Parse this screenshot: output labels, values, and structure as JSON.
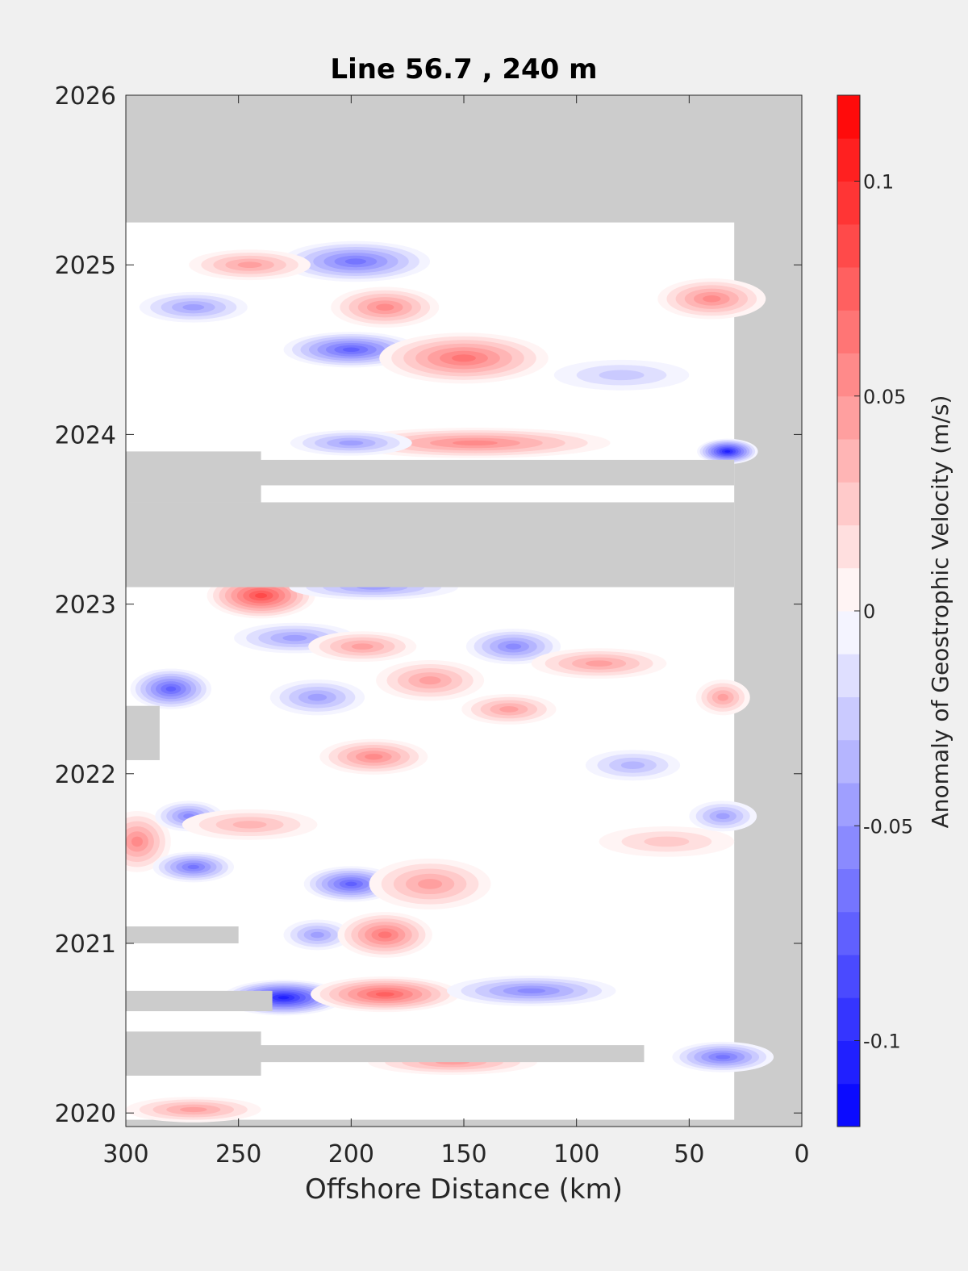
{
  "chart_data": {
    "type": "heatmap",
    "title": "Line 56.7 , 240 m",
    "xlabel": "Offshore Distance (km)",
    "ylabel": "",
    "xlim": [
      300,
      0
    ],
    "ylim": [
      2019.92,
      2026
    ],
    "x_ticks": [
      "300",
      "250",
      "200",
      "150",
      "100",
      "50",
      "0"
    ],
    "y_ticks": [
      "2020",
      "2021",
      "2022",
      "2023",
      "2024",
      "2025",
      "2026"
    ],
    "x_axis_reversed": true,
    "colorbar": {
      "label": "Anomaly of Geostrophic Velocity (m/s)",
      "range": [
        -0.12,
        0.12
      ],
      "step": 0.01,
      "ticks": [
        "-0.1",
        "-0.05",
        "0",
        "0.05",
        "0.1"
      ],
      "ticks_values": [
        -0.1,
        -0.05,
        0,
        0.05,
        0.1
      ],
      "colormap": "blue-white-red",
      "negative_color": "#0000ff",
      "positive_color": "#ff0000",
      "zero_color": "#ffffff"
    },
    "missing_color": "#cccccc",
    "data_extent": {
      "x": [
        30,
        300
      ],
      "y": [
        2019.96,
        2025.25
      ]
    },
    "missing_bands": [
      {
        "y": [
          2023.1,
          2023.6
        ],
        "x": [
          30,
          300
        ]
      },
      {
        "y": [
          2023.6,
          2023.9
        ],
        "x": [
          240,
          300
        ]
      },
      {
        "y": [
          2023.7,
          2023.85
        ],
        "x": [
          30,
          300
        ]
      },
      {
        "y": [
          2022.08,
          2022.4
        ],
        "x": [
          285,
          300
        ]
      },
      {
        "y": [
          2021.0,
          2021.1
        ],
        "x": [
          250,
          300
        ]
      },
      {
        "y": [
          2020.6,
          2020.72
        ],
        "x": [
          235,
          300
        ]
      },
      {
        "y": [
          2020.22,
          2020.48
        ],
        "x": [
          240,
          300
        ]
      },
      {
        "y": [
          2020.3,
          2020.4
        ],
        "x": [
          70,
          300
        ]
      }
    ],
    "features": [
      {
        "x": 198,
        "y": 2025.02,
        "value": -0.07,
        "sx": 22,
        "sy": 0.08
      },
      {
        "x": 245,
        "y": 2025.0,
        "value": 0.05,
        "sx": 18,
        "sy": 0.06
      },
      {
        "x": 185,
        "y": 2024.75,
        "value": 0.06,
        "sx": 16,
        "sy": 0.08
      },
      {
        "x": 200,
        "y": 2024.5,
        "value": -0.08,
        "sx": 20,
        "sy": 0.07
      },
      {
        "x": 150,
        "y": 2024.45,
        "value": 0.07,
        "sx": 25,
        "sy": 0.1
      },
      {
        "x": 270,
        "y": 2024.75,
        "value": -0.05,
        "sx": 16,
        "sy": 0.06
      },
      {
        "x": 40,
        "y": 2024.8,
        "value": 0.06,
        "sx": 16,
        "sy": 0.08
      },
      {
        "x": 80,
        "y": 2024.35,
        "value": -0.03,
        "sx": 20,
        "sy": 0.06
      },
      {
        "x": 33,
        "y": 2023.9,
        "value": -0.11,
        "sx": 9,
        "sy": 0.05
      },
      {
        "x": 145,
        "y": 2023.95,
        "value": 0.06,
        "sx": 40,
        "sy": 0.06
      },
      {
        "x": 200,
        "y": 2023.95,
        "value": -0.05,
        "sx": 18,
        "sy": 0.05
      },
      {
        "x": 240,
        "y": 2023.05,
        "value": 0.09,
        "sx": 16,
        "sy": 0.09
      },
      {
        "x": 190,
        "y": 2023.1,
        "value": -0.05,
        "sx": 25,
        "sy": 0.05
      },
      {
        "x": 280,
        "y": 2022.5,
        "value": -0.08,
        "sx": 12,
        "sy": 0.08
      },
      {
        "x": 225,
        "y": 2022.8,
        "value": -0.05,
        "sx": 18,
        "sy": 0.06
      },
      {
        "x": 195,
        "y": 2022.75,
        "value": 0.05,
        "sx": 16,
        "sy": 0.06
      },
      {
        "x": 128,
        "y": 2022.75,
        "value": -0.06,
        "sx": 14,
        "sy": 0.07
      },
      {
        "x": 165,
        "y": 2022.55,
        "value": 0.05,
        "sx": 16,
        "sy": 0.08
      },
      {
        "x": 215,
        "y": 2022.45,
        "value": -0.05,
        "sx": 14,
        "sy": 0.07
      },
      {
        "x": 90,
        "y": 2022.65,
        "value": 0.05,
        "sx": 20,
        "sy": 0.06
      },
      {
        "x": 130,
        "y": 2022.38,
        "value": 0.05,
        "sx": 14,
        "sy": 0.06
      },
      {
        "x": 190,
        "y": 2022.1,
        "value": 0.06,
        "sx": 16,
        "sy": 0.07
      },
      {
        "x": 295,
        "y": 2021.6,
        "value": 0.06,
        "sx": 10,
        "sy": 0.12
      },
      {
        "x": 272,
        "y": 2021.75,
        "value": -0.06,
        "sx": 10,
        "sy": 0.06
      },
      {
        "x": 270,
        "y": 2021.45,
        "value": -0.07,
        "sx": 12,
        "sy": 0.06
      },
      {
        "x": 200,
        "y": 2021.35,
        "value": -0.08,
        "sx": 14,
        "sy": 0.07
      },
      {
        "x": 165,
        "y": 2021.35,
        "value": 0.05,
        "sx": 18,
        "sy": 0.1
      },
      {
        "x": 245,
        "y": 2021.7,
        "value": 0.04,
        "sx": 20,
        "sy": 0.06
      },
      {
        "x": 215,
        "y": 2021.05,
        "value": -0.05,
        "sx": 10,
        "sy": 0.06
      },
      {
        "x": 185,
        "y": 2021.05,
        "value": 0.07,
        "sx": 14,
        "sy": 0.09
      },
      {
        "x": 230,
        "y": 2020.68,
        "value": -0.11,
        "sx": 18,
        "sy": 0.07
      },
      {
        "x": 185,
        "y": 2020.7,
        "value": 0.08,
        "sx": 22,
        "sy": 0.07
      },
      {
        "x": 120,
        "y": 2020.72,
        "value": -0.06,
        "sx": 25,
        "sy": 0.06
      },
      {
        "x": 35,
        "y": 2020.33,
        "value": -0.07,
        "sx": 15,
        "sy": 0.06
      },
      {
        "x": 270,
        "y": 2020.02,
        "value": 0.05,
        "sx": 20,
        "sy": 0.05
      },
      {
        "x": 155,
        "y": 2020.3,
        "value": 0.05,
        "sx": 25,
        "sy": 0.05
      },
      {
        "x": 60,
        "y": 2021.6,
        "value": 0.03,
        "sx": 20,
        "sy": 0.06
      },
      {
        "x": 75,
        "y": 2022.05,
        "value": -0.04,
        "sx": 14,
        "sy": 0.06
      },
      {
        "x": 35,
        "y": 2021.75,
        "value": -0.05,
        "sx": 10,
        "sy": 0.06
      },
      {
        "x": 35,
        "y": 2022.45,
        "value": 0.05,
        "sx": 8,
        "sy": 0.07
      }
    ]
  }
}
